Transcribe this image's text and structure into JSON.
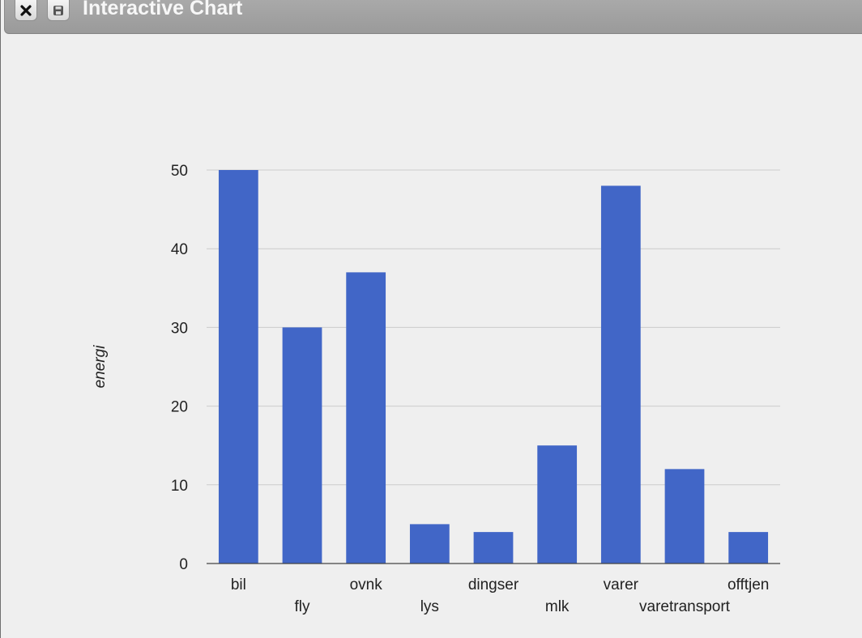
{
  "window": {
    "title": "Interactive Chart",
    "close_icon": "close-icon",
    "save_icon": "floppy-disk-icon"
  },
  "colors": {
    "bar": "#4166c7",
    "grid": "#cccccc",
    "baseline": "#444444"
  },
  "chart_data": {
    "type": "bar",
    "categories": [
      "bil",
      "fly",
      "ovnk",
      "lys",
      "dingser",
      "mlk",
      "varer",
      "varetransport",
      "offtjen"
    ],
    "values": [
      50,
      30,
      37,
      5,
      4,
      15,
      48,
      12,
      4
    ],
    "title": "",
    "xlabel": "",
    "ylabel": "energi",
    "ylim": [
      0,
      50
    ],
    "yticks": [
      0,
      10,
      20,
      30,
      40,
      50
    ],
    "grid": true,
    "legend": "none"
  }
}
